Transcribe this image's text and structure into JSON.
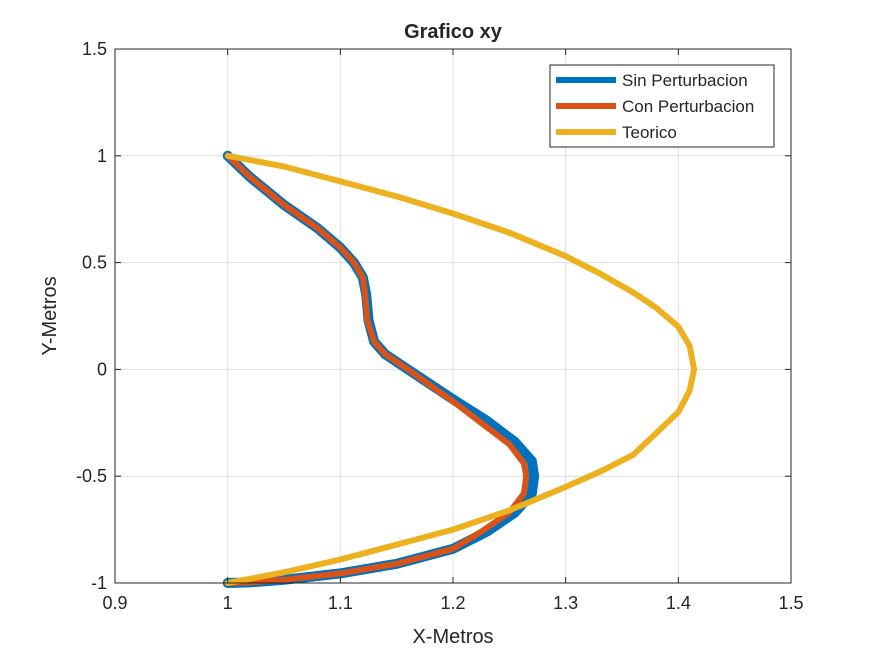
{
  "chart_data": {
    "type": "line",
    "title": "Grafico xy",
    "xlabel": "X-Metros",
    "ylabel": "Y-Metros",
    "xlim": [
      0.9,
      1.5
    ],
    "ylim": [
      -1,
      1.5
    ],
    "xticks": [
      "0.9",
      "1",
      "1.1",
      "1.2",
      "1.3",
      "1.4",
      "1.5"
    ],
    "yticks": [
      "-1",
      "-0.5",
      "0",
      "0.5",
      "1",
      "1.5"
    ],
    "grid": true,
    "legend_position": "top-right",
    "series": [
      {
        "name": "Sin Perturbacion",
        "color": "#0072BD",
        "x": [
          1.0,
          1.02,
          1.05,
          1.08,
          1.1,
          1.112,
          1.12,
          1.123,
          1.124,
          1.125,
          1.13,
          1.14,
          1.16,
          1.2,
          1.23,
          1.255,
          1.27,
          1.272,
          1.27,
          1.255,
          1.23,
          1.2,
          1.15,
          1.1,
          1.05,
          1.02,
          1.0
        ],
        "y": [
          1.0,
          0.9,
          0.77,
          0.66,
          0.57,
          0.5,
          0.43,
          0.35,
          0.29,
          0.23,
          0.13,
          0.07,
          0.0,
          -0.14,
          -0.24,
          -0.34,
          -0.43,
          -0.5,
          -0.58,
          -0.67,
          -0.76,
          -0.84,
          -0.91,
          -0.955,
          -0.985,
          -0.997,
          -1.0
        ]
      },
      {
        "name": "Con Perturbacion",
        "color": "#D95319",
        "x": [
          1.0,
          1.02,
          1.05,
          1.08,
          1.1,
          1.112,
          1.12,
          1.122,
          1.123,
          1.124,
          1.13,
          1.14,
          1.16,
          1.2,
          1.225,
          1.25,
          1.263,
          1.265,
          1.263,
          1.25,
          1.225,
          1.2,
          1.15,
          1.1,
          1.05,
          1.02,
          1.0
        ],
        "y": [
          1.0,
          0.9,
          0.77,
          0.66,
          0.57,
          0.5,
          0.43,
          0.35,
          0.29,
          0.23,
          0.13,
          0.07,
          0.0,
          -0.15,
          -0.25,
          -0.35,
          -0.44,
          -0.5,
          -0.58,
          -0.67,
          -0.76,
          -0.84,
          -0.91,
          -0.955,
          -0.985,
          -0.997,
          -1.0
        ]
      },
      {
        "name": "Teorico",
        "color": "#EDB120",
        "x": [
          1.0,
          1.05,
          1.1,
          1.15,
          1.2,
          1.25,
          1.3,
          1.33,
          1.36,
          1.38,
          1.4,
          1.41,
          1.414,
          1.41,
          1.4,
          1.38,
          1.36,
          1.33,
          1.3,
          1.25,
          1.2,
          1.15,
          1.1,
          1.05,
          1.0
        ],
        "y": [
          1.0,
          0.95,
          0.88,
          0.81,
          0.73,
          0.64,
          0.53,
          0.45,
          0.36,
          0.29,
          0.2,
          0.11,
          0.0,
          -0.1,
          -0.2,
          -0.3,
          -0.4,
          -0.48,
          -0.55,
          -0.66,
          -0.75,
          -0.82,
          -0.89,
          -0.95,
          -1.0
        ]
      }
    ]
  }
}
